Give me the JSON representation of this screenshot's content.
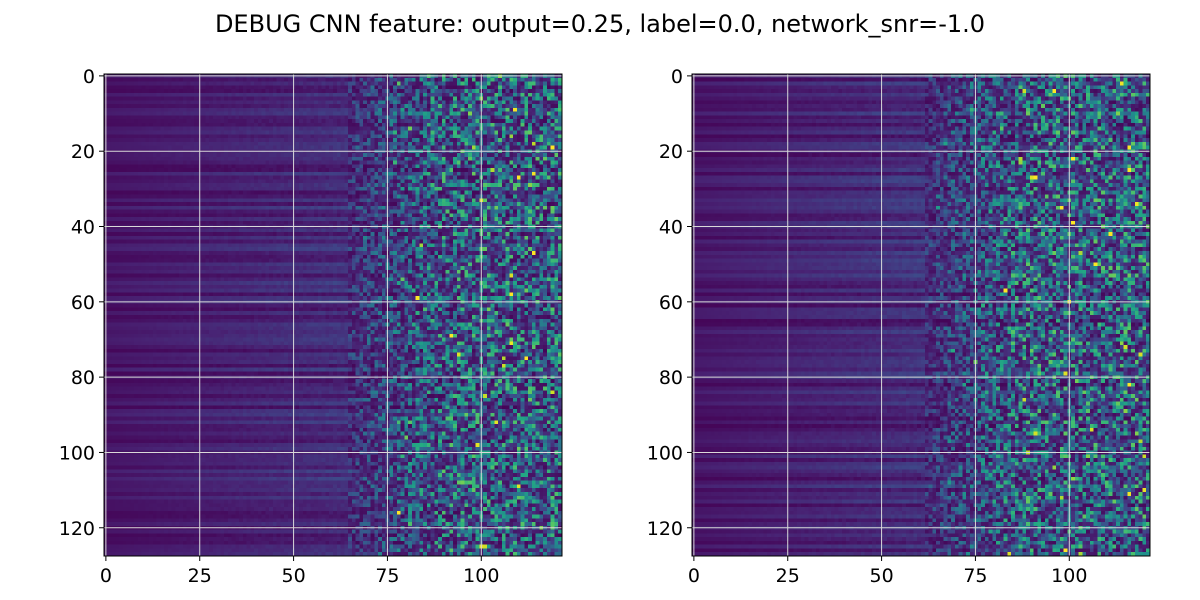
{
  "figure": {
    "title": "DEBUG CNN feature: output=0.25, label=0.0, network_snr=-1.0"
  },
  "chart_data": [
    {
      "type": "heatmap",
      "title": "",
      "xlabel": "",
      "ylabel": "",
      "cols": 122,
      "rows": 128,
      "xlim": [
        0,
        122
      ],
      "ylim": [
        128,
        0
      ],
      "xticks": [
        0,
        25,
        50,
        75,
        100
      ],
      "yticks": [
        0,
        20,
        40,
        60,
        80,
        100,
        120
      ],
      "x_tick_labels": [
        "0",
        "25",
        "50",
        "75",
        "100"
      ],
      "y_tick_labels": [
        "0",
        "20",
        "40",
        "60",
        "80",
        "100",
        "120"
      ],
      "grid": true,
      "colormap": "viridis",
      "seed": 17,
      "noise_onset_col": 65,
      "bright_pixels": [
        {
          "x": 78,
          "y": 116
        },
        {
          "x": 92,
          "y": 69
        },
        {
          "x": 112,
          "y": 75
        },
        {
          "x": 108,
          "y": 58
        },
        {
          "x": 83,
          "y": 59
        },
        {
          "x": 110,
          "y": 27
        },
        {
          "x": 114,
          "y": 47
        }
      ]
    },
    {
      "type": "heatmap",
      "title": "",
      "xlabel": "",
      "ylabel": "",
      "cols": 122,
      "rows": 128,
      "xlim": [
        0,
        122
      ],
      "ylim": [
        128,
        0
      ],
      "xticks": [
        0,
        25,
        50,
        75,
        100
      ],
      "yticks": [
        0,
        20,
        40,
        60,
        80,
        100,
        120
      ],
      "x_tick_labels": [
        "0",
        "25",
        "50",
        "75",
        "100"
      ],
      "y_tick_labels": [
        "0",
        "20",
        "40",
        "60",
        "80",
        "100",
        "120"
      ],
      "grid": true,
      "colormap": "viridis",
      "seed": 91,
      "noise_onset_col": 62,
      "bright_pixels": [
        {
          "x": 96,
          "y": 4
        },
        {
          "x": 101,
          "y": 22
        },
        {
          "x": 116,
          "y": 25
        },
        {
          "x": 83,
          "y": 57
        },
        {
          "x": 100,
          "y": 60
        },
        {
          "x": 111,
          "y": 42
        },
        {
          "x": 116,
          "y": 82
        },
        {
          "x": 99,
          "y": 126
        }
      ]
    }
  ],
  "colors": {
    "grid": "#d9d9d9",
    "axes": "#000000",
    "background": "#ffffff"
  }
}
